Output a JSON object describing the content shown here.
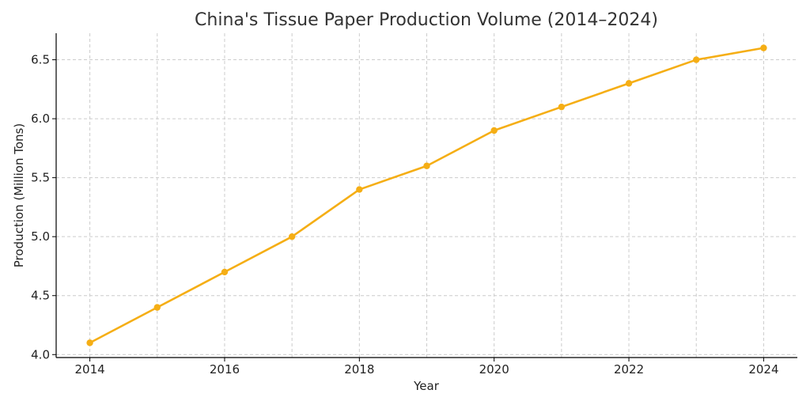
{
  "chart_data": {
    "type": "line",
    "title": "China's Tissue Paper Production Volume (2014–2024)",
    "xlabel": "Year",
    "ylabel": "Production (Million Tons)",
    "x": [
      2014,
      2015,
      2016,
      2017,
      2018,
      2019,
      2020,
      2021,
      2022,
      2023,
      2024
    ],
    "series": [
      {
        "values": [
          4.1,
          4.4,
          4.7,
          5.0,
          5.4,
          5.6,
          5.9,
          6.1,
          6.3,
          6.5,
          6.6
        ],
        "color": "#f5ae15"
      }
    ],
    "xlim": [
      2013.5,
      2024.5
    ],
    "ylim": [
      3.975,
      6.725
    ],
    "xticks": [
      2014,
      2016,
      2018,
      2020,
      2022,
      2024
    ],
    "yticks": [
      4.0,
      4.5,
      5.0,
      5.5,
      6.0,
      6.5
    ],
    "ytick_labels": [
      "4.0",
      "4.5",
      "5.0",
      "5.5",
      "6.0",
      "6.5"
    ],
    "grid": true,
    "line_color": "#f5ae15"
  }
}
